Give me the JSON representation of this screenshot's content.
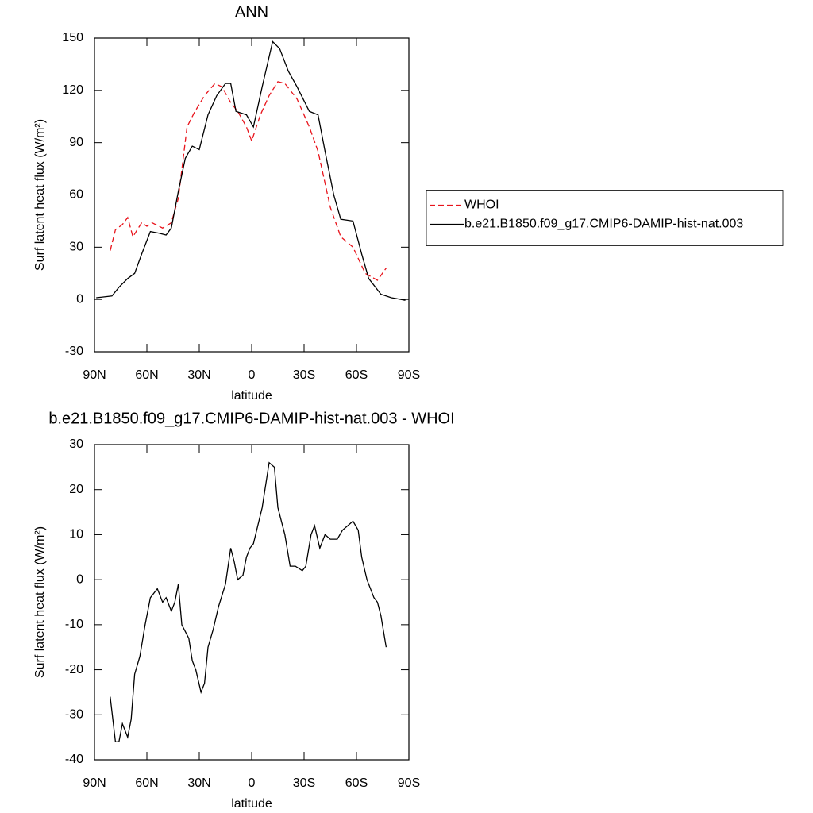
{
  "chart_data": [
    {
      "type": "line",
      "title": "ANN",
      "xlabel": "latitude",
      "ylabel": "Surf latent heat flux (W/m²)",
      "xlim": [
        90,
        -90
      ],
      "xticks": [
        {
          "value": 90,
          "label": "90N"
        },
        {
          "value": 60,
          "label": "60N"
        },
        {
          "value": 30,
          "label": "30N"
        },
        0,
        {
          "value": -30,
          "label": "30S"
        },
        {
          "value": -60,
          "label": "60S"
        },
        {
          "value": -90,
          "label": "90S"
        }
      ],
      "ylim": [
        -30,
        150
      ],
      "yticks": [
        -30,
        0,
        30,
        60,
        90,
        120,
        150
      ],
      "legend": "outside-right",
      "series": [
        {
          "name": "WHOI",
          "color": "#e8141c",
          "style": "dashed",
          "x": [
            81,
            78,
            74,
            71,
            68,
            63,
            60,
            57,
            51,
            46,
            42,
            37,
            33,
            27,
            21,
            17,
            12,
            8,
            3,
            0,
            -5,
            -10,
            -15,
            -19,
            -26,
            -33,
            -38,
            -45,
            -51,
            -58,
            -65,
            -72,
            -77
          ],
          "values": [
            28,
            40,
            43,
            47,
            36,
            44,
            42,
            44,
            41,
            44,
            58,
            99,
            107,
            117,
            124,
            122,
            113,
            108,
            99,
            91,
            106,
            117,
            125,
            124,
            115,
            99,
            85,
            53,
            36,
            30,
            15,
            11,
            18
          ]
        },
        {
          "name": "b.e21.B1850.f09_g17.CMIP6-DAMIP-hist-nat.003",
          "color": "#000000",
          "style": "solid",
          "x": [
            89,
            80,
            76,
            71,
            67,
            63,
            58,
            53,
            49,
            46,
            42,
            38,
            34,
            30,
            25,
            20,
            15,
            12,
            9,
            3,
            -1,
            -6,
            -12,
            -16,
            -21,
            -26,
            -33,
            -38,
            -42,
            -47,
            -51,
            -58,
            -63,
            -67,
            -74,
            -80,
            -83,
            -88
          ],
          "values": [
            1,
            2,
            7,
            12,
            15,
            26,
            39,
            38,
            37,
            41,
            62,
            81,
            88,
            86,
            106,
            117,
            124,
            124,
            108,
            106,
            99,
            122,
            148,
            144,
            131,
            122,
            108,
            106,
            85,
            60,
            46,
            45,
            26,
            12,
            3,
            1,
            0.5,
            -0.5
          ]
        }
      ]
    },
    {
      "type": "line",
      "title": "b.e21.B1850.f09_g17.CMIP6-DAMIP-hist-nat.003 - WHOI",
      "xlabel": "latitude",
      "ylabel": "Surf latent heat flux (W/m²)",
      "xlim": [
        90,
        -90
      ],
      "xticks": [
        {
          "value": 90,
          "label": "90N"
        },
        {
          "value": 60,
          "label": "60N"
        },
        {
          "value": 30,
          "label": "30N"
        },
        0,
        {
          "value": -30,
          "label": "30S"
        },
        {
          "value": -60,
          "label": "60S"
        },
        {
          "value": -90,
          "label": "90S"
        }
      ],
      "ylim": [
        -40,
        30
      ],
      "yticks": [
        -40,
        -30,
        -20,
        -10,
        0,
        10,
        20,
        30
      ],
      "series": [
        {
          "color": "#000000",
          "style": "solid",
          "x": [
            81,
            78,
            76,
            74,
            71,
            69,
            67,
            64,
            61,
            58,
            54,
            51,
            49,
            46,
            44,
            42,
            40,
            36,
            34,
            32,
            29,
            27,
            25,
            22,
            19,
            15,
            12,
            10,
            8,
            5,
            3,
            1,
            -1,
            -6,
            -10,
            -13,
            -15,
            -19,
            -22,
            -25,
            -29,
            -31,
            -34,
            -36,
            -39,
            -42,
            -45,
            -49,
            -52,
            -55,
            -58,
            -61,
            -63,
            -66,
            -70,
            -72,
            -74,
            -77
          ],
          "values": [
            -26,
            -36,
            -36,
            -32,
            -35,
            -31,
            -21,
            -17,
            -10,
            -4,
            -2,
            -5,
            -4,
            -7,
            -5,
            -1,
            -10,
            -13,
            -18,
            -20,
            -25,
            -23,
            -15,
            -11,
            -6,
            -1,
            7,
            4,
            0,
            1,
            5,
            7,
            8,
            16,
            26,
            25,
            16,
            10,
            3,
            3,
            2,
            3,
            10,
            12,
            7,
            10,
            9,
            9,
            11,
            12,
            13,
            11,
            5,
            0,
            -4,
            -5,
            -8,
            -15
          ]
        }
      ]
    }
  ]
}
